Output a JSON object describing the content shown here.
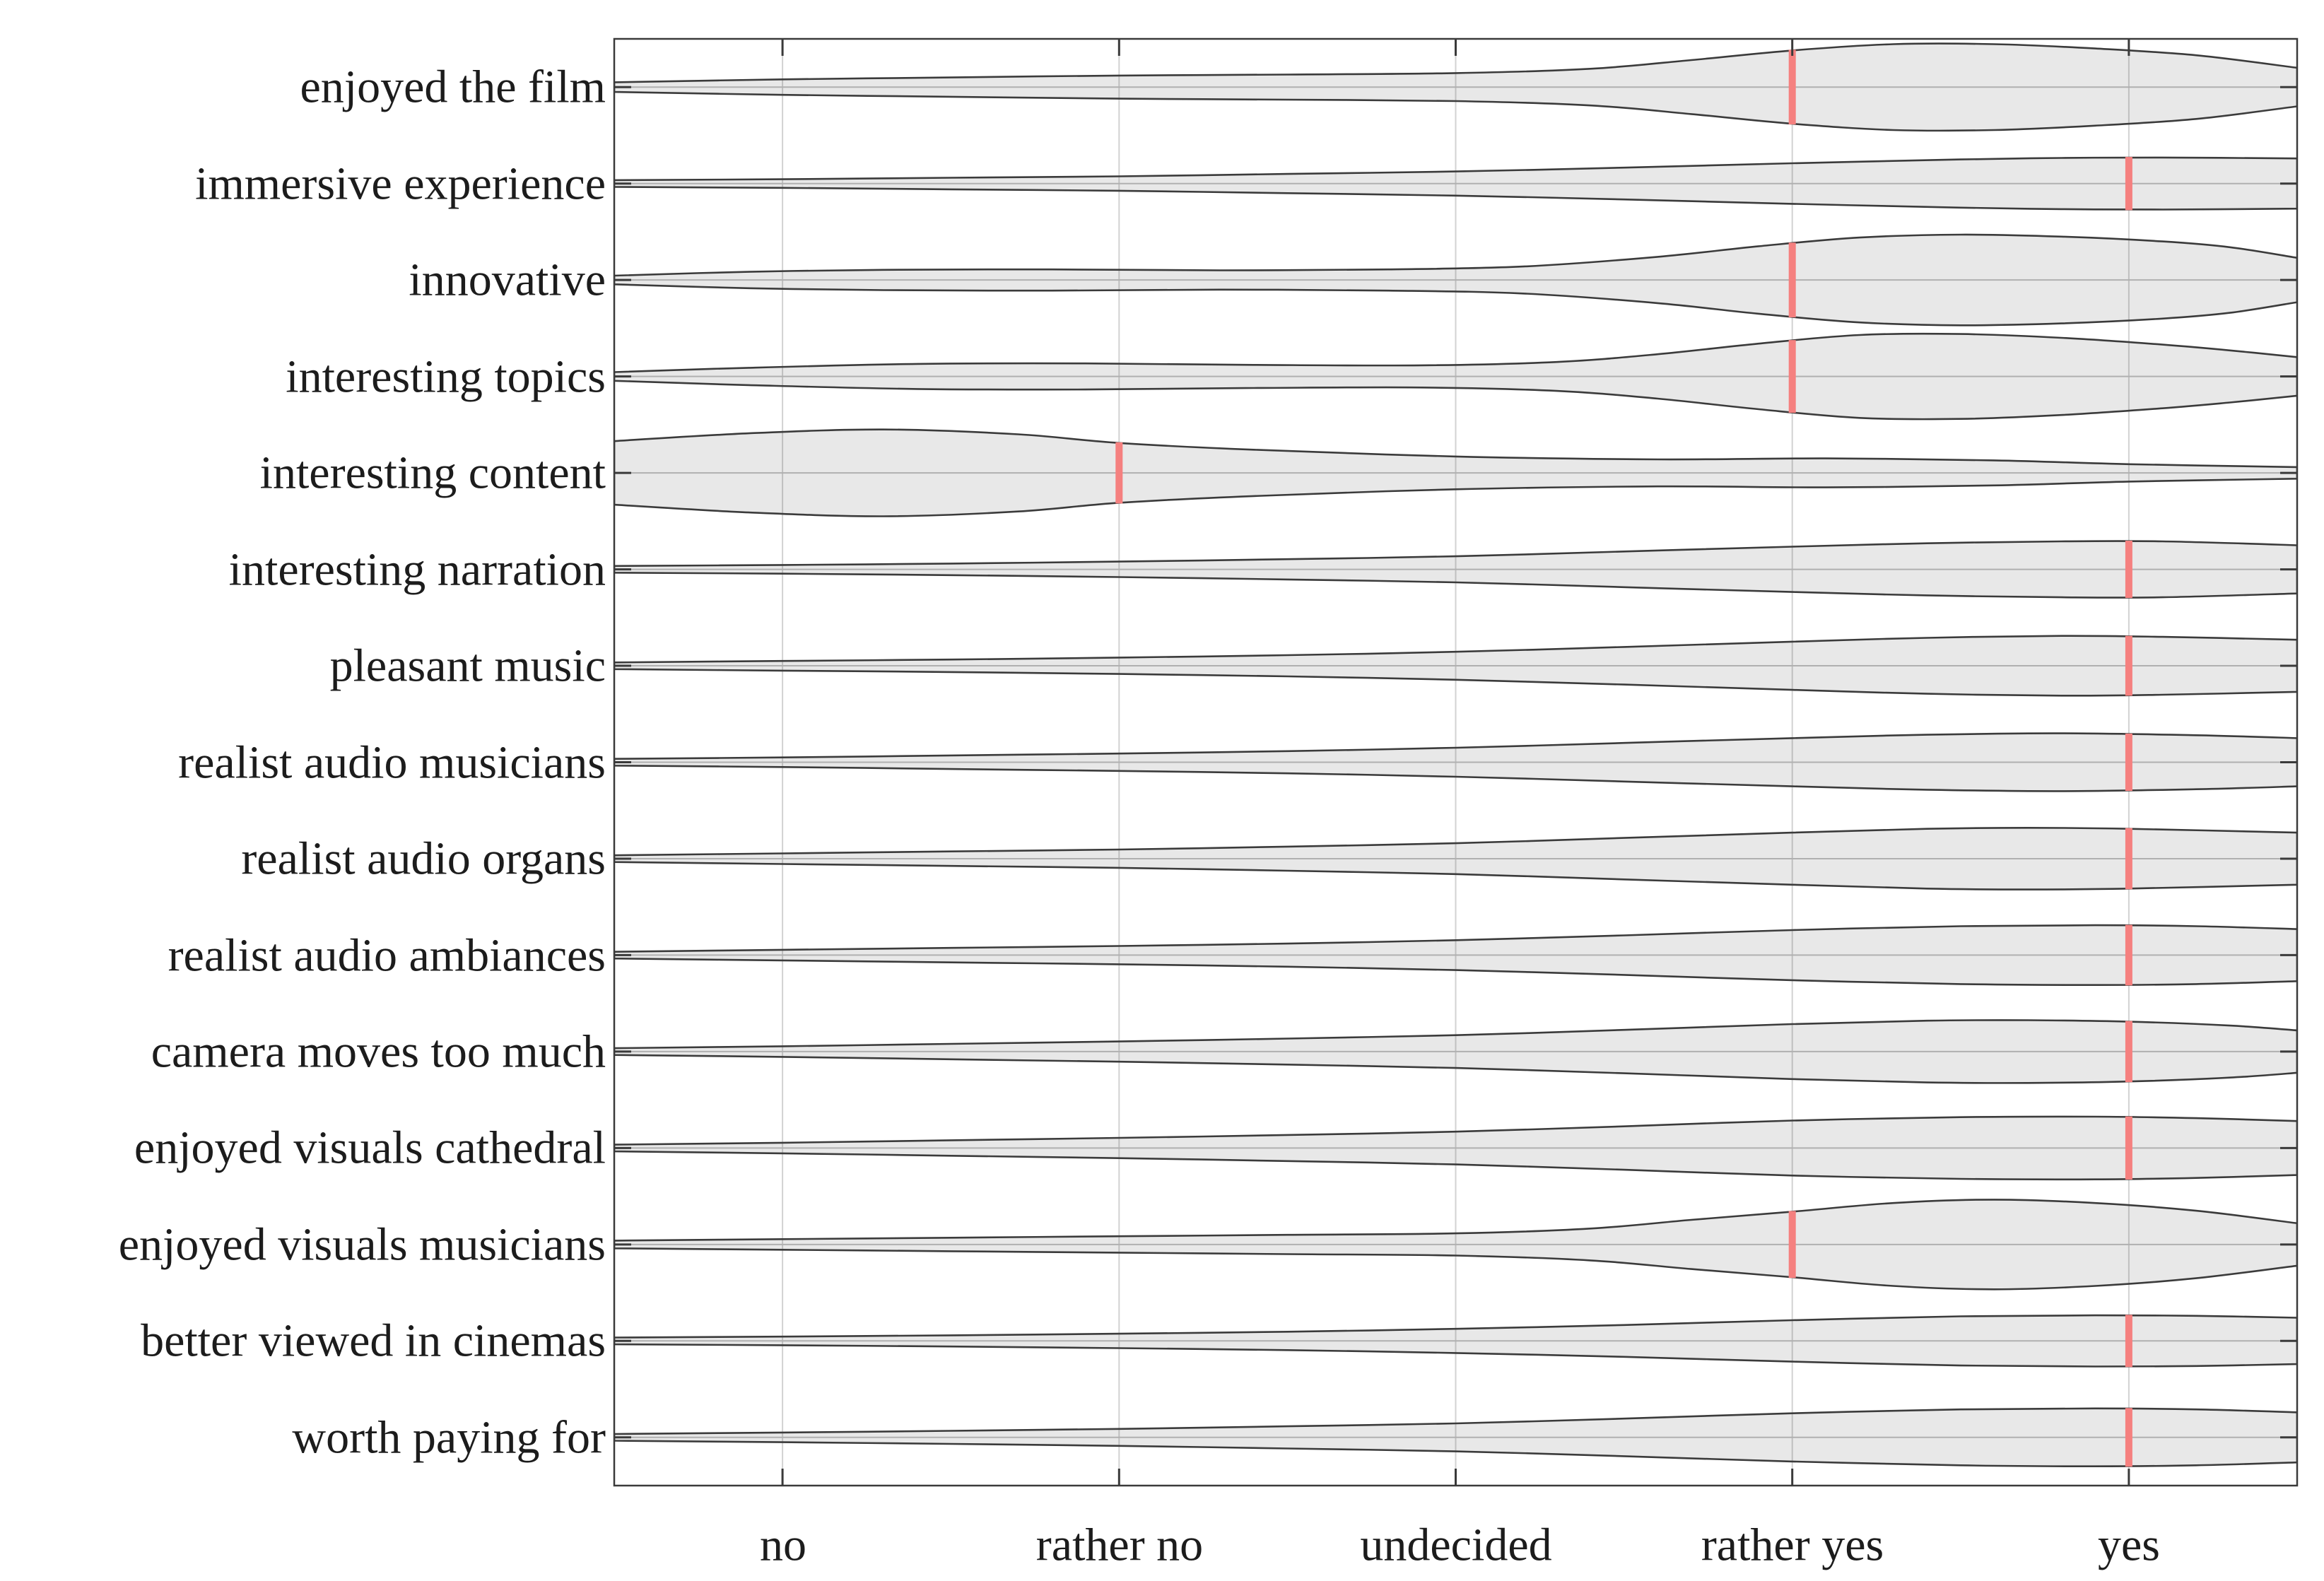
{
  "chart_data": {
    "type": "violin",
    "orientation": "horizontal",
    "title": "",
    "grid": "vertical-on",
    "legend": "none",
    "colors": {
      "violin_fill": "#e8e8e8",
      "violin_fill_rgba": "rgba(0,0,0,0.09)",
      "violin_outline": "#3b3b3b",
      "median_marker": "#f5807f",
      "gridline": "#d2d2d2",
      "row_center_line": "#c2c2c2",
      "frame": "#3a3a3a",
      "label_text": "#1c1c1c",
      "background": "#ffffff"
    },
    "x_axis": {
      "categories": [
        "no",
        "rather no",
        "undecided",
        "rather yes",
        "yes"
      ],
      "category_values": [
        1,
        2,
        3,
        4,
        5
      ],
      "range": [
        0.5,
        5.5
      ]
    },
    "rows": [
      {
        "label": "enjoyed the film",
        "median": "rather yes",
        "median_value": 4,
        "profile": [
          [
            0.5,
            0.05
          ],
          [
            1,
            0.08
          ],
          [
            1.5,
            0.1
          ],
          [
            2,
            0.12
          ],
          [
            2.5,
            0.13
          ],
          [
            3,
            0.145
          ],
          [
            3.4,
            0.19
          ],
          [
            3.7,
            0.28
          ],
          [
            4,
            0.38
          ],
          [
            4.3,
            0.445
          ],
          [
            4.6,
            0.445
          ],
          [
            4.9,
            0.4
          ],
          [
            5.2,
            0.33
          ],
          [
            5.5,
            0.2
          ]
        ]
      },
      {
        "label": "immersive experience",
        "median": "yes",
        "median_value": 5,
        "profile": [
          [
            0.5,
            0.035
          ],
          [
            1,
            0.045
          ],
          [
            1.5,
            0.06
          ],
          [
            2,
            0.075
          ],
          [
            2.5,
            0.1
          ],
          [
            3,
            0.125
          ],
          [
            3.5,
            0.165
          ],
          [
            4,
            0.21
          ],
          [
            4.5,
            0.25
          ],
          [
            4.8,
            0.265
          ],
          [
            5.1,
            0.27
          ],
          [
            5.5,
            0.26
          ]
        ]
      },
      {
        "label": "innovative",
        "median": "rather yes",
        "median_value": 4,
        "profile": [
          [
            0.5,
            0.045
          ],
          [
            0.9,
            0.085
          ],
          [
            1.3,
            0.105
          ],
          [
            1.8,
            0.11
          ],
          [
            2.3,
            0.1
          ],
          [
            2.8,
            0.11
          ],
          [
            3.2,
            0.14
          ],
          [
            3.6,
            0.24
          ],
          [
            3.9,
            0.35
          ],
          [
            4.2,
            0.44
          ],
          [
            4.5,
            0.47
          ],
          [
            4.8,
            0.45
          ],
          [
            5.1,
            0.4
          ],
          [
            5.3,
            0.34
          ],
          [
            5.5,
            0.23
          ]
        ]
      },
      {
        "label": "interesting topics",
        "median": "rather yes",
        "median_value": 4,
        "profile": [
          [
            0.5,
            0.045
          ],
          [
            0.9,
            0.09
          ],
          [
            1.4,
            0.13
          ],
          [
            1.9,
            0.135
          ],
          [
            2.4,
            0.12
          ],
          [
            2.9,
            0.115
          ],
          [
            3.3,
            0.15
          ],
          [
            3.6,
            0.23
          ],
          [
            3.9,
            0.34
          ],
          [
            4.2,
            0.43
          ],
          [
            4.5,
            0.44
          ],
          [
            4.8,
            0.4
          ],
          [
            5.1,
            0.33
          ],
          [
            5.3,
            0.27
          ],
          [
            5.5,
            0.2
          ]
        ]
      },
      {
        "label": "interesting content",
        "median": "rather no",
        "median_value": 2,
        "profile": [
          [
            0.5,
            0.33
          ],
          [
            0.9,
            0.41
          ],
          [
            1.3,
            0.45
          ],
          [
            1.7,
            0.4
          ],
          [
            2.0,
            0.31
          ],
          [
            2.4,
            0.24
          ],
          [
            3.0,
            0.17
          ],
          [
            3.6,
            0.14
          ],
          [
            4.1,
            0.15
          ],
          [
            4.6,
            0.13
          ],
          [
            5.0,
            0.09
          ],
          [
            5.5,
            0.06
          ]
        ]
      },
      {
        "label": "interesting narration",
        "median": "yes",
        "median_value": 5,
        "profile": [
          [
            0.5,
            0.035
          ],
          [
            1,
            0.045
          ],
          [
            1.5,
            0.06
          ],
          [
            2,
            0.08
          ],
          [
            2.5,
            0.105
          ],
          [
            3,
            0.135
          ],
          [
            3.5,
            0.185
          ],
          [
            4,
            0.235
          ],
          [
            4.4,
            0.27
          ],
          [
            4.8,
            0.29
          ],
          [
            5.1,
            0.29
          ],
          [
            5.5,
            0.25
          ]
        ]
      },
      {
        "label": "pleasant music",
        "median": "yes",
        "median_value": 5,
        "profile": [
          [
            0.5,
            0.035
          ],
          [
            1,
            0.05
          ],
          [
            1.5,
            0.065
          ],
          [
            2,
            0.085
          ],
          [
            2.5,
            0.11
          ],
          [
            3,
            0.145
          ],
          [
            3.5,
            0.195
          ],
          [
            4,
            0.25
          ],
          [
            4.4,
            0.29
          ],
          [
            4.8,
            0.31
          ],
          [
            5.1,
            0.3
          ],
          [
            5.5,
            0.27
          ]
        ]
      },
      {
        "label": "realist audio musicians",
        "median": "yes",
        "median_value": 5,
        "profile": [
          [
            0.5,
            0.035
          ],
          [
            1,
            0.05
          ],
          [
            1.5,
            0.07
          ],
          [
            2,
            0.09
          ],
          [
            2.5,
            0.115
          ],
          [
            3,
            0.15
          ],
          [
            3.5,
            0.2
          ],
          [
            4,
            0.25
          ],
          [
            4.4,
            0.285
          ],
          [
            4.8,
            0.3
          ],
          [
            5.2,
            0.28
          ],
          [
            5.5,
            0.25
          ]
        ]
      },
      {
        "label": "realist audio organs",
        "median": "yes",
        "median_value": 5,
        "profile": [
          [
            0.5,
            0.035
          ],
          [
            1,
            0.055
          ],
          [
            1.5,
            0.075
          ],
          [
            2,
            0.095
          ],
          [
            2.5,
            0.125
          ],
          [
            3,
            0.16
          ],
          [
            3.5,
            0.215
          ],
          [
            4,
            0.27
          ],
          [
            4.4,
            0.31
          ],
          [
            4.7,
            0.32
          ],
          [
            5.0,
            0.31
          ],
          [
            5.5,
            0.27
          ]
        ]
      },
      {
        "label": "realist audio ambiances",
        "median": "yes",
        "median_value": 5,
        "profile": [
          [
            0.5,
            0.035
          ],
          [
            1,
            0.055
          ],
          [
            1.5,
            0.075
          ],
          [
            2,
            0.095
          ],
          [
            2.5,
            0.12
          ],
          [
            3,
            0.155
          ],
          [
            3.5,
            0.205
          ],
          [
            4,
            0.26
          ],
          [
            4.5,
            0.3
          ],
          [
            4.9,
            0.31
          ],
          [
            5.2,
            0.3
          ],
          [
            5.5,
            0.27
          ]
        ]
      },
      {
        "label": "camera moves too much",
        "median": "yes",
        "median_value": 5,
        "profile": [
          [
            0.5,
            0.035
          ],
          [
            1,
            0.055
          ],
          [
            1.5,
            0.08
          ],
          [
            2,
            0.105
          ],
          [
            2.5,
            0.135
          ],
          [
            3,
            0.17
          ],
          [
            3.5,
            0.225
          ],
          [
            4,
            0.285
          ],
          [
            4.4,
            0.32
          ],
          [
            4.7,
            0.325
          ],
          [
            5.0,
            0.31
          ],
          [
            5.3,
            0.27
          ],
          [
            5.5,
            0.22
          ]
        ]
      },
      {
        "label": "enjoyed visuals cathedral",
        "median": "yes",
        "median_value": 5,
        "profile": [
          [
            0.5,
            0.035
          ],
          [
            1,
            0.055
          ],
          [
            1.5,
            0.08
          ],
          [
            2,
            0.105
          ],
          [
            2.5,
            0.135
          ],
          [
            3,
            0.17
          ],
          [
            3.5,
            0.225
          ],
          [
            4,
            0.285
          ],
          [
            4.5,
            0.32
          ],
          [
            4.9,
            0.325
          ],
          [
            5.2,
            0.31
          ],
          [
            5.5,
            0.28
          ]
        ]
      },
      {
        "label": "enjoyed visuals musicians",
        "median": "rather yes",
        "median_value": 4,
        "profile": [
          [
            0.5,
            0.04
          ],
          [
            1,
            0.055
          ],
          [
            1.5,
            0.07
          ],
          [
            2,
            0.085
          ],
          [
            2.5,
            0.1
          ],
          [
            3,
            0.115
          ],
          [
            3.4,
            0.165
          ],
          [
            3.7,
            0.255
          ],
          [
            4,
            0.34
          ],
          [
            4.3,
            0.43
          ],
          [
            4.6,
            0.465
          ],
          [
            4.9,
            0.43
          ],
          [
            5.2,
            0.35
          ],
          [
            5.5,
            0.22
          ]
        ]
      },
      {
        "label": "better viewed in cinemas",
        "median": "yes",
        "median_value": 5,
        "profile": [
          [
            0.5,
            0.035
          ],
          [
            1,
            0.045
          ],
          [
            1.5,
            0.058
          ],
          [
            2,
            0.075
          ],
          [
            2.5,
            0.095
          ],
          [
            3,
            0.125
          ],
          [
            3.5,
            0.165
          ],
          [
            4,
            0.215
          ],
          [
            4.5,
            0.255
          ],
          [
            4.9,
            0.265
          ],
          [
            5.2,
            0.26
          ],
          [
            5.5,
            0.24
          ]
        ]
      },
      {
        "label": "worth paying for",
        "median": "yes",
        "median_value": 5,
        "profile": [
          [
            0.5,
            0.035
          ],
          [
            1,
            0.05
          ],
          [
            1.5,
            0.068
          ],
          [
            2,
            0.088
          ],
          [
            2.5,
            0.115
          ],
          [
            3,
            0.145
          ],
          [
            3.5,
            0.195
          ],
          [
            4,
            0.25
          ],
          [
            4.5,
            0.29
          ],
          [
            4.9,
            0.3
          ],
          [
            5.2,
            0.29
          ],
          [
            5.5,
            0.26
          ]
        ]
      }
    ]
  }
}
